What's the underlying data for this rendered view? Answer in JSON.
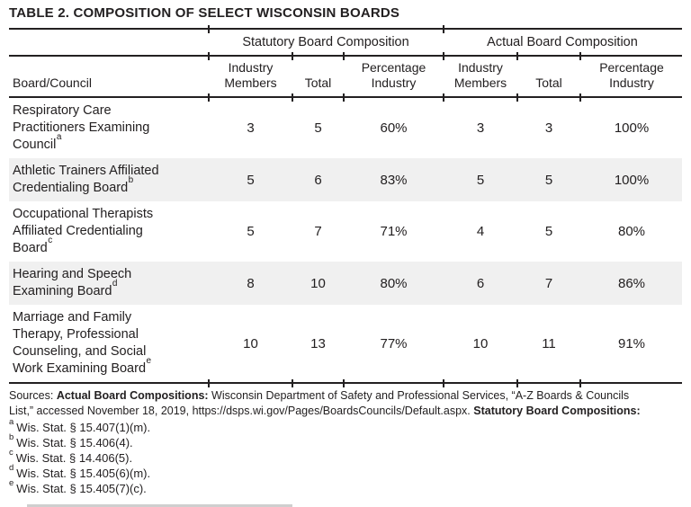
{
  "title": "TABLE 2. COMPOSITION OF SELECT WISCONSIN BOARDS",
  "table": {
    "group_headers": {
      "statutory": "Statutory Board Composition",
      "actual": "Actual Board Composition"
    },
    "columns": {
      "board": "Board/Council",
      "industry_members": "Industry Members",
      "total": "Total",
      "percentage_industry": "Percentage Industry"
    },
    "rows": [
      {
        "board": "Respiratory Care Practitioners Examining Council",
        "note": "a",
        "values": [
          "3",
          "5",
          "60%",
          "3",
          "3",
          "100%"
        ]
      },
      {
        "board": "Athletic Trainers Affiliated Credentialing Board",
        "note": "b",
        "values": [
          "5",
          "6",
          "83%",
          "5",
          "5",
          "100%"
        ]
      },
      {
        "board": "Occupational Therapists Affiliated Credentialing Board",
        "note": "c",
        "values": [
          "5",
          "7",
          "71%",
          "4",
          "5",
          "80%"
        ]
      },
      {
        "board": "Hearing and Speech Examining Board",
        "note": "d",
        "values": [
          "8",
          "10",
          "80%",
          "6",
          "7",
          "86%"
        ]
      },
      {
        "board": "Marriage and Family Therapy, Professional Counseling, and Social Work Examining Board",
        "note": "e",
        "values": [
          "10",
          "13",
          "77%",
          "10",
          "11",
          "91%"
        ]
      }
    ]
  },
  "footer": {
    "sources_lines": [
      {
        "pre": "Sources: ",
        "bold": "Actual Board Compositions:",
        "post": " Wisconsin Department of Safety and Professional Services, “A-Z Boards & Councils"
      },
      {
        "pre": "List,” accessed November 18, 2019, https://dsps.wi.gov/Pages/BoardsCouncils/Default.aspx. ",
        "bold": "Statutory Board Compositions:",
        "post": ""
      }
    ],
    "footnotes": [
      {
        "marker": "a",
        "text": "Wis. Stat. § 15.407(1)(m)."
      },
      {
        "marker": "b",
        "text": "Wis. Stat. § 15.406(4)."
      },
      {
        "marker": "c",
        "text": "Wis. Stat. § 14.406(5)."
      },
      {
        "marker": "d",
        "text": "Wis. Stat. § 15.405(6)(m)."
      },
      {
        "marker": "e",
        "text": "Wis. Stat. § 15.405(7)(c)."
      }
    ]
  },
  "colors": {
    "text": "#232021",
    "rule": "#232021",
    "row_shade": "#f0f0f0"
  }
}
